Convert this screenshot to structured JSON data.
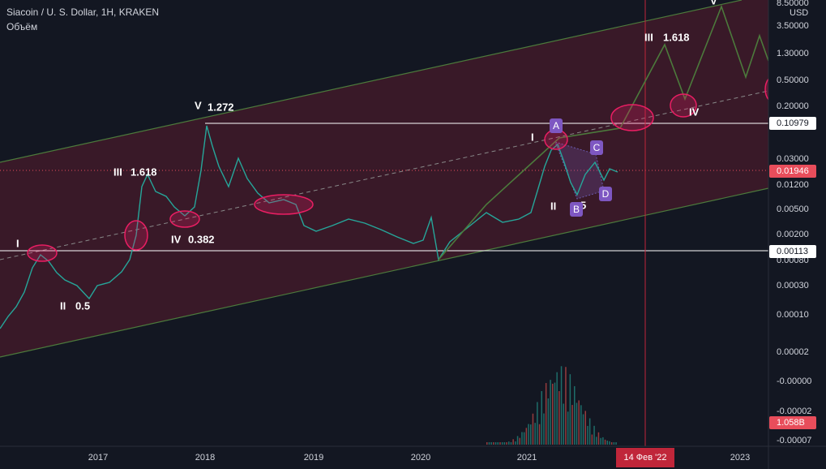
{
  "header": {
    "symbol": "Siacoin / U. S. Dollar, 1H, KRAKEN",
    "volume": "Объём"
  },
  "price_axis": {
    "currency": "USD",
    "labels": [
      "8.50000",
      "3.50000",
      "1.30000",
      "0.50000",
      "0.20000",
      "0.03000",
      "0.01200",
      "0.00500",
      "0.00200",
      "0.00080",
      "0.00030",
      "0.00010",
      "0.00002",
      "-0.00000",
      "-0.00002",
      "-0.00007"
    ],
    "markers": {
      "high_line": "0.10979",
      "low_line": "0.00113",
      "last_price": "0.01946",
      "last_volume": "1.058B"
    }
  },
  "time_axis": {
    "labels": [
      "2017",
      "2018",
      "2019",
      "2020",
      "2021",
      "2023"
    ],
    "cursor": "14 Фев '22"
  },
  "annotations": [
    {
      "text": "I"
    },
    {
      "text": "II"
    },
    {
      "text": "0.5"
    },
    {
      "text": "III"
    },
    {
      "text": "1.618"
    },
    {
      "text": "IV"
    },
    {
      "text": "0.382"
    },
    {
      "text": "V"
    },
    {
      "text": "1.272"
    },
    {
      "text": "I"
    },
    {
      "text": "II"
    },
    {
      "text": "5"
    },
    {
      "text": "III"
    },
    {
      "text": "1.618"
    },
    {
      "text": "IV"
    },
    {
      "text": "V"
    }
  ],
  "abcd": [
    "A",
    "B",
    "C",
    "D"
  ]
}
